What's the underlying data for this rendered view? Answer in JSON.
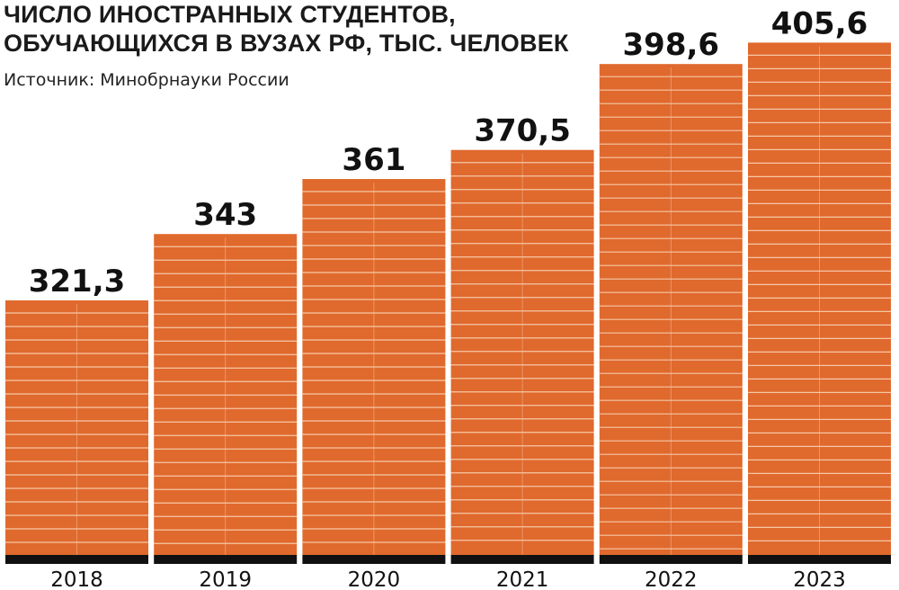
{
  "title_line1": "ЧИСЛО ИНОСТРАННЫХ СТУДЕНТОВ,",
  "title_line2": "ОБУЧАЮЩИХСЯ В ВУЗАХ РФ, ТЫС. ЧЕЛОВЕК",
  "source": "Источник: Минобрнауки России",
  "colors": {
    "bar": "#e0692d",
    "stripe": "#f6c7a6",
    "base": "#111111",
    "text": "#111111"
  },
  "chart_data": {
    "type": "bar",
    "title": "ЧИСЛО ИНОСТРАННЫХ СТУДЕНТОВ, ОБУЧАЮЩИХСЯ В ВУЗАХ РФ, ТЫС. ЧЕЛОВЕК",
    "categories": [
      "2018",
      "2019",
      "2020",
      "2021",
      "2022",
      "2023"
    ],
    "values": [
      321.3,
      343,
      361,
      370.5,
      398.6,
      405.6
    ],
    "value_labels": [
      "321,3",
      "343",
      "361",
      "370,5",
      "398,6",
      "405,6"
    ],
    "xlabel": "",
    "ylabel": "",
    "grid": false,
    "legend": "none"
  }
}
